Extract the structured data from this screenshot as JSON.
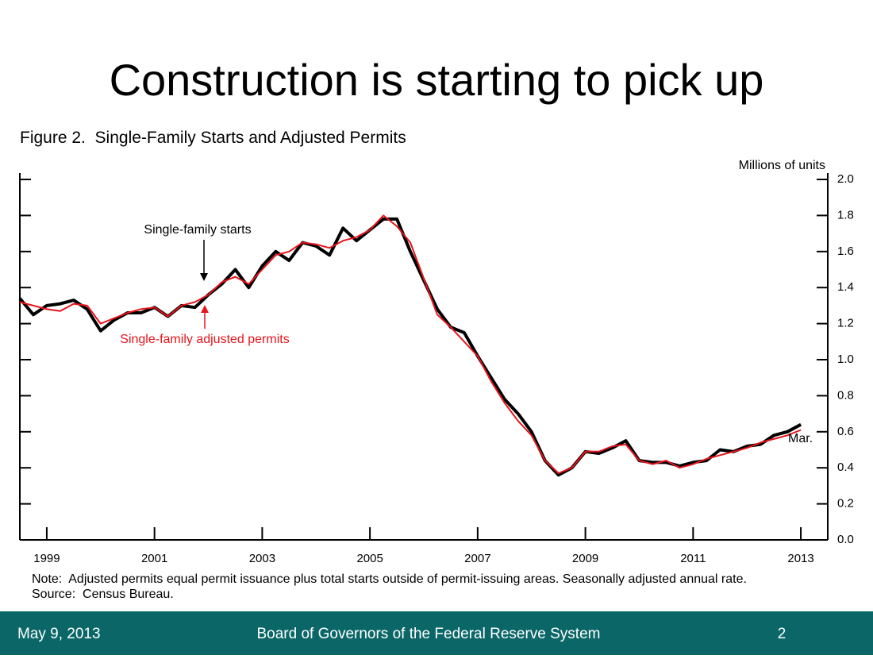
{
  "slide": {
    "title": "Construction is starting to pick up",
    "footer": {
      "date": "May 9, 2013",
      "org": "Board of Governors of the Federal Reserve System",
      "page": "2"
    }
  },
  "chart_data": {
    "type": "line",
    "title": "Figure 2.  Single-Family Starts and Adjusted Permits",
    "y_label": "Millions of units",
    "note": "Note:  Adjusted permits equal permit issuance plus total starts outside of permit-issuing areas. Seasonally adjusted annual rate.",
    "source": "Source:  Census Bureau.",
    "annotations": {
      "starts": "Single-family starts",
      "permits": "Single-family adjusted permits",
      "end": "Mar."
    },
    "x": [
      1998.5,
      1998.75,
      1999,
      1999.25,
      1999.5,
      1999.75,
      2000,
      2000.25,
      2000.5,
      2000.75,
      2001,
      2001.25,
      2001.5,
      2001.75,
      2002,
      2002.25,
      2002.5,
      2002.75,
      2003,
      2003.25,
      2003.5,
      2003.75,
      2004,
      2004.25,
      2004.5,
      2004.75,
      2005,
      2005.25,
      2005.5,
      2005.75,
      2006,
      2006.25,
      2006.5,
      2006.75,
      2007,
      2007.25,
      2007.5,
      2007.75,
      2008,
      2008.25,
      2008.5,
      2008.75,
      2009,
      2009.25,
      2009.5,
      2009.75,
      2010,
      2010.25,
      2010.5,
      2010.75,
      2011,
      2011.25,
      2011.5,
      2011.75,
      2012,
      2012.25,
      2012.5,
      2012.75,
      2013
    ],
    "series": [
      {
        "name": "Single-family starts",
        "color": "#000000",
        "width": 4,
        "values": [
          1.34,
          1.25,
          1.3,
          1.31,
          1.33,
          1.28,
          1.16,
          1.22,
          1.26,
          1.26,
          1.29,
          1.24,
          1.3,
          1.29,
          1.36,
          1.42,
          1.5,
          1.4,
          1.52,
          1.6,
          1.55,
          1.65,
          1.63,
          1.58,
          1.73,
          1.66,
          1.72,
          1.78,
          1.78,
          1.6,
          1.44,
          1.28,
          1.18,
          1.15,
          1.02,
          0.9,
          0.78,
          0.7,
          0.6,
          0.44,
          0.36,
          0.4,
          0.49,
          0.48,
          0.51,
          0.55,
          0.44,
          0.43,
          0.43,
          0.41,
          0.43,
          0.44,
          0.5,
          0.49,
          0.52,
          0.53,
          0.58,
          0.6,
          0.64
        ]
      },
      {
        "name": "Single-family adjusted permits",
        "color": "#e8141b",
        "width": 2,
        "values": [
          1.32,
          1.3,
          1.28,
          1.27,
          1.31,
          1.3,
          1.2,
          1.23,
          1.26,
          1.28,
          1.29,
          1.24,
          1.3,
          1.32,
          1.36,
          1.43,
          1.46,
          1.42,
          1.5,
          1.58,
          1.6,
          1.65,
          1.64,
          1.62,
          1.66,
          1.68,
          1.72,
          1.8,
          1.74,
          1.65,
          1.45,
          1.25,
          1.18,
          1.1,
          1.02,
          0.88,
          0.76,
          0.66,
          0.58,
          0.44,
          0.37,
          0.4,
          0.49,
          0.49,
          0.52,
          0.53,
          0.44,
          0.42,
          0.44,
          0.4,
          0.42,
          0.45,
          0.47,
          0.49,
          0.51,
          0.54,
          0.56,
          0.58,
          0.61
        ]
      }
    ],
    "xlim": [
      1998.5,
      2013.5
    ],
    "xticks": [
      1999,
      2001,
      2003,
      2005,
      2007,
      2009,
      2011,
      2013
    ],
    "ylim": [
      0,
      2
    ],
    "yticks": [
      {
        "value": 0,
        "label": "0.0"
      },
      {
        "value": 0.2,
        "label": "0.2"
      },
      {
        "value": 0.4,
        "label": "0.4"
      },
      {
        "value": 0.6,
        "label": "0.6"
      },
      {
        "value": 0.8,
        "label": "0.8"
      },
      {
        "value": 1,
        "label": "1.0"
      },
      {
        "value": 1.2,
        "label": "1.2"
      },
      {
        "value": 1.4,
        "label": "1.4"
      },
      {
        "value": 1.6,
        "label": "1.6"
      },
      {
        "value": 1.8,
        "label": "1.8"
      },
      {
        "value": 2,
        "label": "2.0"
      }
    ]
  }
}
